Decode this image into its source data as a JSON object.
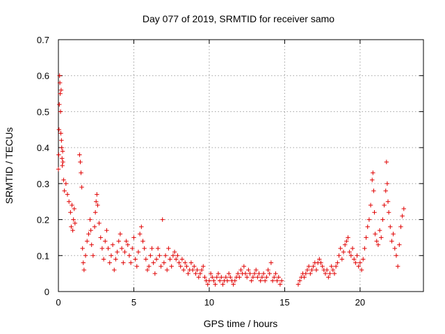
{
  "chart_data": {
    "type": "scatter",
    "title": "Day 077 of 2019, SRMTID for receiver samo",
    "xlabel": "GPS time / hours",
    "ylabel": "SRMTID / TECUs",
    "xlim": [
      0,
      24.2
    ],
    "ylim": [
      0,
      0.7
    ],
    "xticks": [
      0,
      5,
      10,
      15,
      20
    ],
    "xtick_labels": [
      "0",
      "5",
      "10",
      "15",
      "20"
    ],
    "yticks": [
      0,
      0.1,
      0.2,
      0.3,
      0.4,
      0.5,
      0.6,
      0.7
    ],
    "ytick_labels": [
      "0",
      "0.1",
      "0.2",
      "0.3",
      "0.4",
      "0.5",
      "0.6",
      "0.7"
    ],
    "grid": true,
    "marker": "+",
    "color": "#e00000",
    "series": [
      {
        "name": "samo",
        "points": [
          [
            0.0,
            0.34
          ],
          [
            0.02,
            0.38
          ],
          [
            0.04,
            0.45
          ],
          [
            0.06,
            0.52
          ],
          [
            0.08,
            0.6
          ],
          [
            0.1,
            0.58
          ],
          [
            0.12,
            0.55
          ],
          [
            0.14,
            0.5
          ],
          [
            0.16,
            0.44
          ],
          [
            0.18,
            0.56
          ],
          [
            0.2,
            0.42
          ],
          [
            0.22,
            0.4
          ],
          [
            0.24,
            0.37
          ],
          [
            0.26,
            0.35
          ],
          [
            0.28,
            0.39
          ],
          [
            0.3,
            0.36
          ],
          [
            0.35,
            0.31
          ],
          [
            0.4,
            0.28
          ],
          [
            0.5,
            0.3
          ],
          [
            0.6,
            0.27
          ],
          [
            0.7,
            0.25
          ],
          [
            0.8,
            0.22
          ],
          [
            0.85,
            0.18
          ],
          [
            0.9,
            0.24
          ],
          [
            0.95,
            0.17
          ],
          [
            1.0,
            0.2
          ],
          [
            1.05,
            0.23
          ],
          [
            1.1,
            0.19
          ],
          [
            1.4,
            0.38
          ],
          [
            1.45,
            0.36
          ],
          [
            1.5,
            0.33
          ],
          [
            1.55,
            0.29
          ],
          [
            1.6,
            0.12
          ],
          [
            1.65,
            0.08
          ],
          [
            1.7,
            0.06
          ],
          [
            1.8,
            0.1
          ],
          [
            1.9,
            0.14
          ],
          [
            2.0,
            0.16
          ],
          [
            2.1,
            0.2
          ],
          [
            2.15,
            0.17
          ],
          [
            2.2,
            0.13
          ],
          [
            2.3,
            0.1
          ],
          [
            2.4,
            0.18
          ],
          [
            2.45,
            0.22
          ],
          [
            2.5,
            0.25
          ],
          [
            2.55,
            0.27
          ],
          [
            2.6,
            0.24
          ],
          [
            2.7,
            0.19
          ],
          [
            2.8,
            0.15
          ],
          [
            2.9,
            0.12
          ],
          [
            3.0,
            0.09
          ],
          [
            3.1,
            0.14
          ],
          [
            3.2,
            0.17
          ],
          [
            3.3,
            0.12
          ],
          [
            3.4,
            0.08
          ],
          [
            3.5,
            0.1
          ],
          [
            3.6,
            0.13
          ],
          [
            3.7,
            0.06
          ],
          [
            3.8,
            0.09
          ],
          [
            3.9,
            0.11
          ],
          [
            4.0,
            0.14
          ],
          [
            4.1,
            0.16
          ],
          [
            4.2,
            0.12
          ],
          [
            4.3,
            0.08
          ],
          [
            4.4,
            0.11
          ],
          [
            4.5,
            0.14
          ],
          [
            4.6,
            0.13
          ],
          [
            4.7,
            0.1
          ],
          [
            4.8,
            0.08
          ],
          [
            4.9,
            0.12
          ],
          [
            5.0,
            0.15
          ],
          [
            5.1,
            0.09
          ],
          [
            5.2,
            0.07
          ],
          [
            5.3,
            0.11
          ],
          [
            5.4,
            0.16
          ],
          [
            5.5,
            0.18
          ],
          [
            5.6,
            0.14
          ],
          [
            5.7,
            0.12
          ],
          [
            5.8,
            0.09
          ],
          [
            5.9,
            0.06
          ],
          [
            6.0,
            0.07
          ],
          [
            6.1,
            0.1
          ],
          [
            6.2,
            0.12
          ],
          [
            6.3,
            0.08
          ],
          [
            6.4,
            0.05
          ],
          [
            6.5,
            0.09
          ],
          [
            6.6,
            0.12
          ],
          [
            6.7,
            0.1
          ],
          [
            6.8,
            0.07
          ],
          [
            6.9,
            0.2
          ],
          [
            7.0,
            0.08
          ],
          [
            7.1,
            0.1
          ],
          [
            7.2,
            0.06
          ],
          [
            7.3,
            0.12
          ],
          [
            7.4,
            0.09
          ],
          [
            7.5,
            0.07
          ],
          [
            7.6,
            0.1
          ],
          [
            7.7,
            0.11
          ],
          [
            7.8,
            0.09
          ],
          [
            7.9,
            0.1
          ],
          [
            8.0,
            0.08
          ],
          [
            8.1,
            0.07
          ],
          [
            8.2,
            0.09
          ],
          [
            8.3,
            0.06
          ],
          [
            8.4,
            0.08
          ],
          [
            8.5,
            0.07
          ],
          [
            8.6,
            0.05
          ],
          [
            8.7,
            0.06
          ],
          [
            8.8,
            0.08
          ],
          [
            8.9,
            0.06
          ],
          [
            9.0,
            0.07
          ],
          [
            9.1,
            0.05
          ],
          [
            9.2,
            0.06
          ],
          [
            9.3,
            0.04
          ],
          [
            9.4,
            0.05
          ],
          [
            9.5,
            0.06
          ],
          [
            9.6,
            0.07
          ],
          [
            9.7,
            0.04
          ],
          [
            9.8,
            0.03
          ],
          [
            9.9,
            0.02
          ],
          [
            10.0,
            0.03
          ],
          [
            10.1,
            0.05
          ],
          [
            10.2,
            0.04
          ],
          [
            10.3,
            0.03
          ],
          [
            10.4,
            0.02
          ],
          [
            10.5,
            0.04
          ],
          [
            10.6,
            0.05
          ],
          [
            10.7,
            0.03
          ],
          [
            10.8,
            0.04
          ],
          [
            10.9,
            0.02
          ],
          [
            11.0,
            0.03
          ],
          [
            11.1,
            0.04
          ],
          [
            11.2,
            0.03
          ],
          [
            11.3,
            0.05
          ],
          [
            11.4,
            0.04
          ],
          [
            11.5,
            0.03
          ],
          [
            11.6,
            0.02
          ],
          [
            11.7,
            0.03
          ],
          [
            11.8,
            0.04
          ],
          [
            11.9,
            0.05
          ],
          [
            12.0,
            0.04
          ],
          [
            12.1,
            0.06
          ],
          [
            12.2,
            0.05
          ],
          [
            12.3,
            0.07
          ],
          [
            12.4,
            0.05
          ],
          [
            12.5,
            0.04
          ],
          [
            12.6,
            0.06
          ],
          [
            12.7,
            0.05
          ],
          [
            12.8,
            0.03
          ],
          [
            12.9,
            0.04
          ],
          [
            13.0,
            0.05
          ],
          [
            13.1,
            0.06
          ],
          [
            13.2,
            0.04
          ],
          [
            13.3,
            0.05
          ],
          [
            13.4,
            0.03
          ],
          [
            13.5,
            0.04
          ],
          [
            13.6,
            0.05
          ],
          [
            13.7,
            0.03
          ],
          [
            13.8,
            0.04
          ],
          [
            13.9,
            0.06
          ],
          [
            14.0,
            0.05
          ],
          [
            14.1,
            0.08
          ],
          [
            14.2,
            0.03
          ],
          [
            14.3,
            0.04
          ],
          [
            14.4,
            0.05
          ],
          [
            14.5,
            0.03
          ],
          [
            14.6,
            0.04
          ],
          [
            14.7,
            0.02
          ],
          [
            14.8,
            0.03
          ],
          [
            15.9,
            0.02
          ],
          [
            16.0,
            0.03
          ],
          [
            16.1,
            0.04
          ],
          [
            16.2,
            0.05
          ],
          [
            16.3,
            0.04
          ],
          [
            16.4,
            0.05
          ],
          [
            16.5,
            0.06
          ],
          [
            16.6,
            0.07
          ],
          [
            16.7,
            0.05
          ],
          [
            16.8,
            0.06
          ],
          [
            16.9,
            0.07
          ],
          [
            17.0,
            0.08
          ],
          [
            17.1,
            0.06
          ],
          [
            17.2,
            0.08
          ],
          [
            17.3,
            0.09
          ],
          [
            17.4,
            0.08
          ],
          [
            17.5,
            0.07
          ],
          [
            17.6,
            0.06
          ],
          [
            17.7,
            0.05
          ],
          [
            17.8,
            0.06
          ],
          [
            17.9,
            0.04
          ],
          [
            18.0,
            0.05
          ],
          [
            18.1,
            0.07
          ],
          [
            18.2,
            0.06
          ],
          [
            18.3,
            0.05
          ],
          [
            18.4,
            0.07
          ],
          [
            18.5,
            0.08
          ],
          [
            18.6,
            0.1
          ],
          [
            18.7,
            0.12
          ],
          [
            18.8,
            0.09
          ],
          [
            18.9,
            0.11
          ],
          [
            19.0,
            0.13
          ],
          [
            19.1,
            0.14
          ],
          [
            19.2,
            0.15
          ],
          [
            19.3,
            0.11
          ],
          [
            19.4,
            0.1
          ],
          [
            19.5,
            0.12
          ],
          [
            19.6,
            0.09
          ],
          [
            19.7,
            0.08
          ],
          [
            19.8,
            0.1
          ],
          [
            19.9,
            0.07
          ],
          [
            20.0,
            0.08
          ],
          [
            20.1,
            0.06
          ],
          [
            20.2,
            0.09
          ],
          [
            20.3,
            0.12
          ],
          [
            20.4,
            0.15
          ],
          [
            20.5,
            0.18
          ],
          [
            20.6,
            0.2
          ],
          [
            20.7,
            0.24
          ],
          [
            20.8,
            0.31
          ],
          [
            20.85,
            0.33
          ],
          [
            20.9,
            0.28
          ],
          [
            20.95,
            0.22
          ],
          [
            21.0,
            0.16
          ],
          [
            21.1,
            0.14
          ],
          [
            21.2,
            0.13
          ],
          [
            21.3,
            0.17
          ],
          [
            21.4,
            0.15
          ],
          [
            21.5,
            0.2
          ],
          [
            21.6,
            0.24
          ],
          [
            21.7,
            0.28
          ],
          [
            21.75,
            0.36
          ],
          [
            21.8,
            0.3
          ],
          [
            21.85,
            0.25
          ],
          [
            21.9,
            0.22
          ],
          [
            22.0,
            0.18
          ],
          [
            22.1,
            0.14
          ],
          [
            22.2,
            0.16
          ],
          [
            22.3,
            0.12
          ],
          [
            22.4,
            0.1
          ],
          [
            22.5,
            0.07
          ],
          [
            22.6,
            0.13
          ],
          [
            22.7,
            0.18
          ],
          [
            22.8,
            0.21
          ],
          [
            22.9,
            0.23
          ]
        ]
      }
    ]
  }
}
